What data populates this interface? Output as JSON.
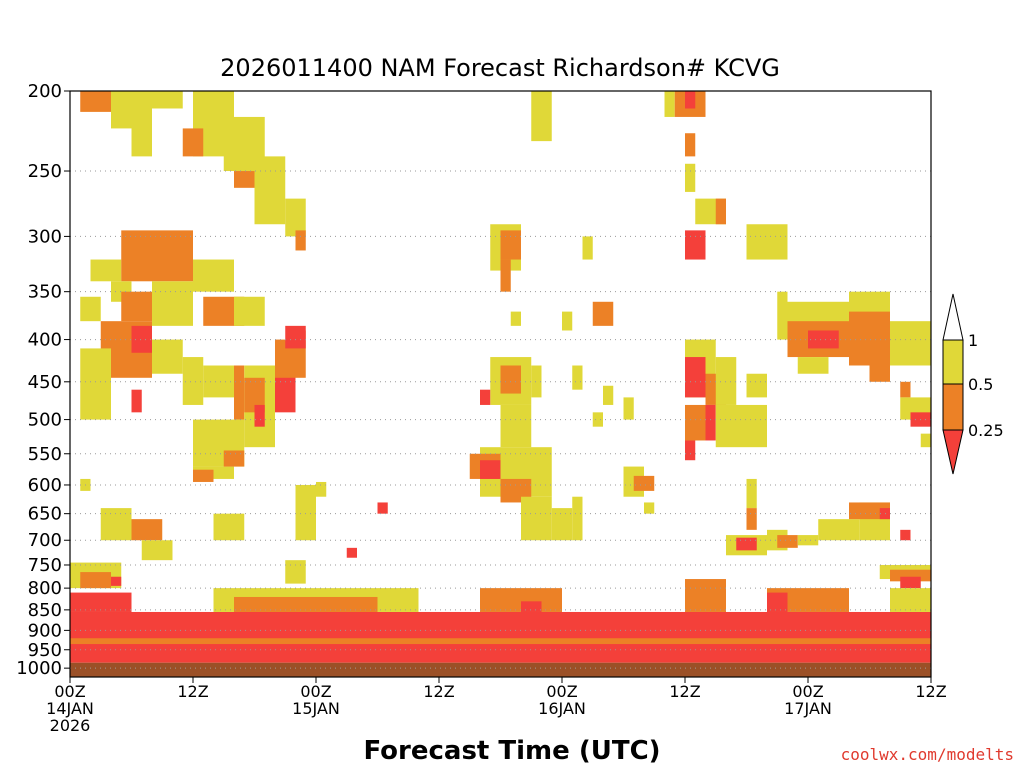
{
  "chart_data": {
    "type": "heatmap",
    "title": "2026011400 NAM Forecast Richardson# KCVG",
    "xlabel": "Forecast Time (UTC)",
    "ylabel": "",
    "credit": "coolwx.com/modelts",
    "y_axis": {
      "unit": "hPa",
      "range": [
        1025,
        200
      ],
      "ticks": [
        200,
        250,
        300,
        350,
        400,
        450,
        500,
        550,
        600,
        650,
        700,
        750,
        800,
        850,
        900,
        950,
        1000
      ]
    },
    "x_axis": {
      "range_hours": [
        0,
        84
      ],
      "ticks": [
        {
          "hour": 0,
          "line1": "00Z",
          "line2": "14JAN",
          "line3": "2026"
        },
        {
          "hour": 12,
          "line1": "12Z",
          "line2": "",
          "line3": ""
        },
        {
          "hour": 24,
          "line1": "00Z",
          "line2": "15JAN",
          "line3": ""
        },
        {
          "hour": 36,
          "line1": "12Z",
          "line2": "",
          "line3": ""
        },
        {
          "hour": 48,
          "line1": "00Z",
          "line2": "16JAN",
          "line3": ""
        },
        {
          "hour": 60,
          "line1": "12Z",
          "line2": "",
          "line3": ""
        },
        {
          "hour": 72,
          "line1": "00Z",
          "line2": "17JAN",
          "line3": ""
        },
        {
          "hour": 84,
          "line1": "12Z",
          "line2": "",
          "line3": ""
        }
      ]
    },
    "grid": "dotted horizontal lines at pressure ticks",
    "legend": {
      "placement": "right",
      "labels": [
        "1",
        "0.5",
        "0.25"
      ],
      "bins": [
        {
          "range": "> 1",
          "color": "#ffffff"
        },
        {
          "range": "0.5 - 1",
          "color": "#e0d838"
        },
        {
          "range": "0.25 - 0.5",
          "color": "#ec8126"
        },
        {
          "range": "< 0.25",
          "color": "#f4403a"
        }
      ]
    },
    "colors": {
      "low": "#f4403a",
      "mid": "#ec8126",
      "high": "#e0d838",
      "ground": "#9b5027"
    },
    "ground_below_hpa": 985,
    "cells": [
      {
        "t0": 1,
        "t1": 4,
        "p0": 200,
        "p1": 212,
        "c": "mid"
      },
      {
        "t0": 4,
        "t1": 6,
        "p0": 200,
        "p1": 222,
        "c": "high"
      },
      {
        "t0": 6,
        "t1": 11,
        "p0": 200,
        "p1": 210,
        "c": "high"
      },
      {
        "t0": 6,
        "t1": 8,
        "p0": 210,
        "p1": 240,
        "c": "high"
      },
      {
        "t0": 12,
        "t1": 16,
        "p0": 200,
        "p1": 240,
        "c": "high"
      },
      {
        "t0": 11,
        "t1": 13,
        "p0": 222,
        "p1": 240,
        "c": "mid"
      },
      {
        "t0": 15,
        "t1": 19,
        "p0": 215,
        "p1": 250,
        "c": "high"
      },
      {
        "t0": 16,
        "t1": 18,
        "p0": 250,
        "p1": 262,
        "c": "mid"
      },
      {
        "t0": 18,
        "t1": 21,
        "p0": 240,
        "p1": 290,
        "c": "high"
      },
      {
        "t0": 21,
        "t1": 23,
        "p0": 270,
        "p1": 300,
        "c": "high"
      },
      {
        "t0": 22,
        "t1": 23,
        "p0": 295,
        "p1": 312,
        "c": "mid"
      },
      {
        "t0": 2,
        "t1": 5,
        "p0": 320,
        "p1": 340,
        "c": "high"
      },
      {
        "t0": 5,
        "t1": 12,
        "p0": 295,
        "p1": 340,
        "c": "mid"
      },
      {
        "t0": 4,
        "t1": 6,
        "p0": 340,
        "p1": 360,
        "c": "high"
      },
      {
        "t0": 5,
        "t1": 8,
        "p0": 350,
        "p1": 380,
        "c": "mid"
      },
      {
        "t0": 8,
        "t1": 12,
        "p0": 340,
        "p1": 385,
        "c": "high"
      },
      {
        "t0": 12,
        "t1": 16,
        "p0": 320,
        "p1": 350,
        "c": "high"
      },
      {
        "t0": 13,
        "t1": 17,
        "p0": 355,
        "p1": 385,
        "c": "mid"
      },
      {
        "t0": 16,
        "t1": 19,
        "p0": 355,
        "p1": 385,
        "c": "high"
      },
      {
        "t0": 1,
        "t1": 3,
        "p0": 355,
        "p1": 380,
        "c": "high"
      },
      {
        "t0": 3,
        "t1": 8,
        "p0": 380,
        "p1": 445,
        "c": "mid"
      },
      {
        "t0": 6,
        "t1": 8,
        "p0": 385,
        "p1": 415,
        "c": "low"
      },
      {
        "t0": 1,
        "t1": 4,
        "p0": 410,
        "p1": 500,
        "c": "high"
      },
      {
        "t0": 8,
        "t1": 11,
        "p0": 400,
        "p1": 440,
        "c": "high"
      },
      {
        "t0": 11,
        "t1": 13,
        "p0": 420,
        "p1": 480,
        "c": "high"
      },
      {
        "t0": 13,
        "t1": 16,
        "p0": 430,
        "p1": 470,
        "c": "high"
      },
      {
        "t0": 16,
        "t1": 17,
        "p0": 430,
        "p1": 500,
        "c": "mid"
      },
      {
        "t0": 17,
        "t1": 20,
        "p0": 430,
        "p1": 540,
        "c": "high"
      },
      {
        "t0": 17,
        "t1": 19,
        "p0": 445,
        "p1": 490,
        "c": "mid"
      },
      {
        "t0": 20,
        "t1": 22,
        "p0": 400,
        "p1": 480,
        "c": "mid"
      },
      {
        "t0": 20,
        "t1": 22,
        "p0": 445,
        "p1": 490,
        "c": "low"
      },
      {
        "t0": 22,
        "t1": 23,
        "p0": 390,
        "p1": 445,
        "c": "mid"
      },
      {
        "t0": 21,
        "t1": 23,
        "p0": 385,
        "p1": 410,
        "c": "low"
      },
      {
        "t0": 18,
        "t1": 19,
        "p0": 480,
        "p1": 510,
        "c": "low"
      },
      {
        "t0": 12,
        "t1": 17,
        "p0": 500,
        "p1": 570,
        "c": "high"
      },
      {
        "t0": 12,
        "t1": 16,
        "p0": 570,
        "p1": 590,
        "c": "high"
      },
      {
        "t0": 12,
        "t1": 14,
        "p0": 575,
        "p1": 595,
        "c": "mid"
      },
      {
        "t0": 15,
        "t1": 17,
        "p0": 545,
        "p1": 570,
        "c": "mid"
      },
      {
        "t0": 6,
        "t1": 7,
        "p0": 460,
        "p1": 490,
        "c": "low"
      },
      {
        "t0": 1,
        "t1": 2,
        "p0": 590,
        "p1": 610,
        "c": "high"
      },
      {
        "t0": 3,
        "t1": 6,
        "p0": 640,
        "p1": 700,
        "c": "high"
      },
      {
        "t0": 6,
        "t1": 9,
        "p0": 660,
        "p1": 700,
        "c": "mid"
      },
      {
        "t0": 7,
        "t1": 10,
        "p0": 700,
        "p1": 740,
        "c": "high"
      },
      {
        "t0": 0,
        "t1": 5,
        "p0": 745,
        "p1": 800,
        "c": "high"
      },
      {
        "t0": 1,
        "t1": 4,
        "p0": 765,
        "p1": 800,
        "c": "mid"
      },
      {
        "t0": 4,
        "t1": 5,
        "p0": 775,
        "p1": 795,
        "c": "low"
      },
      {
        "t0": 14,
        "t1": 17,
        "p0": 650,
        "p1": 700,
        "c": "high"
      },
      {
        "t0": 22,
        "t1": 24,
        "p0": 600,
        "p1": 700,
        "c": "high"
      },
      {
        "t0": 24,
        "t1": 25,
        "p0": 595,
        "p1": 620,
        "c": "high"
      },
      {
        "t0": 27,
        "t1": 28,
        "p0": 715,
        "p1": 735,
        "c": "low"
      },
      {
        "t0": 30,
        "t1": 31,
        "p0": 630,
        "p1": 650,
        "c": "low"
      },
      {
        "t0": 21,
        "t1": 23,
        "p0": 740,
        "p1": 790,
        "c": "high"
      },
      {
        "t0": 45,
        "t1": 47,
        "p0": 200,
        "p1": 230,
        "c": "high"
      },
      {
        "t0": 41,
        "t1": 44,
        "p0": 290,
        "p1": 330,
        "c": "high"
      },
      {
        "t0": 42,
        "t1": 44,
        "p0": 295,
        "p1": 320,
        "c": "mid"
      },
      {
        "t0": 42,
        "t1": 43,
        "p0": 320,
        "p1": 350,
        "c": "mid"
      },
      {
        "t0": 50,
        "t1": 51,
        "p0": 300,
        "p1": 320,
        "c": "high"
      },
      {
        "t0": 43,
        "t1": 44,
        "p0": 370,
        "p1": 385,
        "c": "high"
      },
      {
        "t0": 51,
        "t1": 53,
        "p0": 360,
        "p1": 385,
        "c": "mid"
      },
      {
        "t0": 48,
        "t1": 49,
        "p0": 370,
        "p1": 390,
        "c": "high"
      },
      {
        "t0": 41,
        "t1": 45,
        "p0": 420,
        "p1": 480,
        "c": "high"
      },
      {
        "t0": 42,
        "t1": 44,
        "p0": 430,
        "p1": 465,
        "c": "mid"
      },
      {
        "t0": 40,
        "t1": 41,
        "p0": 460,
        "p1": 480,
        "c": "low"
      },
      {
        "t0": 42,
        "t1": 45,
        "p0": 480,
        "p1": 540,
        "c": "high"
      },
      {
        "t0": 40,
        "t1": 47,
        "p0": 540,
        "p1": 620,
        "c": "high"
      },
      {
        "t0": 39,
        "t1": 42,
        "p0": 550,
        "p1": 590,
        "c": "mid"
      },
      {
        "t0": 40,
        "t1": 42,
        "p0": 560,
        "p1": 590,
        "c": "low"
      },
      {
        "t0": 42,
        "t1": 45,
        "p0": 590,
        "p1": 630,
        "c": "mid"
      },
      {
        "t0": 44,
        "t1": 47,
        "p0": 620,
        "p1": 700,
        "c": "high"
      },
      {
        "t0": 47,
        "t1": 49,
        "p0": 640,
        "p1": 700,
        "c": "high"
      },
      {
        "t0": 49,
        "t1": 50,
        "p0": 620,
        "p1": 700,
        "c": "high"
      },
      {
        "t0": 45,
        "t1": 46,
        "p0": 430,
        "p1": 470,
        "c": "high"
      },
      {
        "t0": 49,
        "t1": 50,
        "p0": 430,
        "p1": 460,
        "c": "high"
      },
      {
        "t0": 52,
        "t1": 53,
        "p0": 455,
        "p1": 480,
        "c": "high"
      },
      {
        "t0": 51,
        "t1": 52,
        "p0": 490,
        "p1": 510,
        "c": "high"
      },
      {
        "t0": 54,
        "t1": 55,
        "p0": 470,
        "p1": 500,
        "c": "high"
      },
      {
        "t0": 54,
        "t1": 56,
        "p0": 570,
        "p1": 620,
        "c": "high"
      },
      {
        "t0": 55,
        "t1": 57,
        "p0": 585,
        "p1": 610,
        "c": "mid"
      },
      {
        "t0": 56,
        "t1": 57,
        "p0": 630,
        "p1": 650,
        "c": "high"
      },
      {
        "t0": 58,
        "t1": 59,
        "p0": 200,
        "p1": 215,
        "c": "high"
      },
      {
        "t0": 59,
        "t1": 62,
        "p0": 200,
        "p1": 215,
        "c": "mid"
      },
      {
        "t0": 60,
        "t1": 61,
        "p0": 200,
        "p1": 210,
        "c": "low"
      },
      {
        "t0": 60,
        "t1": 61,
        "p0": 225,
        "p1": 240,
        "c": "mid"
      },
      {
        "t0": 60,
        "t1": 61,
        "p0": 245,
        "p1": 265,
        "c": "high"
      },
      {
        "t0": 61,
        "t1": 64,
        "p0": 270,
        "p1": 290,
        "c": "high"
      },
      {
        "t0": 63,
        "t1": 64,
        "p0": 270,
        "p1": 290,
        "c": "mid"
      },
      {
        "t0": 60,
        "t1": 62,
        "p0": 295,
        "p1": 320,
        "c": "low"
      },
      {
        "t0": 66,
        "t1": 70,
        "p0": 290,
        "p1": 320,
        "c": "high"
      },
      {
        "t0": 60,
        "t1": 63,
        "p0": 400,
        "p1": 470,
        "c": "high"
      },
      {
        "t0": 60,
        "t1": 62,
        "p0": 420,
        "p1": 470,
        "c": "low"
      },
      {
        "t0": 62,
        "t1": 64,
        "p0": 440,
        "p1": 480,
        "c": "mid"
      },
      {
        "t0": 63,
        "t1": 65,
        "p0": 420,
        "p1": 480,
        "c": "high"
      },
      {
        "t0": 60,
        "t1": 62,
        "p0": 480,
        "p1": 530,
        "c": "mid"
      },
      {
        "t0": 62,
        "t1": 63,
        "p0": 480,
        "p1": 530,
        "c": "low"
      },
      {
        "t0": 63,
        "t1": 68,
        "p0": 480,
        "p1": 540,
        "c": "high"
      },
      {
        "t0": 60,
        "t1": 61,
        "p0": 530,
        "p1": 560,
        "c": "low"
      },
      {
        "t0": 66,
        "t1": 68,
        "p0": 440,
        "p1": 470,
        "c": "high"
      },
      {
        "t0": 66,
        "t1": 67,
        "p0": 590,
        "p1": 640,
        "c": "high"
      },
      {
        "t0": 66,
        "t1": 67,
        "p0": 640,
        "p1": 680,
        "c": "mid"
      },
      {
        "t0": 64,
        "t1": 68,
        "p0": 690,
        "p1": 730,
        "c": "high"
      },
      {
        "t0": 65,
        "t1": 67,
        "p0": 695,
        "p1": 720,
        "c": "low"
      },
      {
        "t0": 68,
        "t1": 70,
        "p0": 680,
        "p1": 720,
        "c": "high"
      },
      {
        "t0": 69,
        "t1": 71,
        "p0": 690,
        "p1": 715,
        "c": "mid"
      },
      {
        "t0": 71,
        "t1": 73,
        "p0": 690,
        "p1": 710,
        "c": "high"
      },
      {
        "t0": 73,
        "t1": 77,
        "p0": 660,
        "p1": 700,
        "c": "high"
      },
      {
        "t0": 77,
        "t1": 80,
        "p0": 630,
        "p1": 700,
        "c": "high"
      },
      {
        "t0": 76,
        "t1": 80,
        "p0": 630,
        "p1": 660,
        "c": "mid"
      },
      {
        "t0": 79,
        "t1": 80,
        "p0": 640,
        "p1": 660,
        "c": "low"
      },
      {
        "t0": 81,
        "t1": 82,
        "p0": 680,
        "p1": 700,
        "c": "low"
      },
      {
        "t0": 79,
        "t1": 84,
        "p0": 750,
        "p1": 780,
        "c": "high"
      },
      {
        "t0": 80,
        "t1": 84,
        "p0": 760,
        "p1": 785,
        "c": "mid"
      },
      {
        "t0": 81,
        "t1": 83,
        "p0": 775,
        "p1": 800,
        "c": "low"
      },
      {
        "t0": 69,
        "t1": 70,
        "p0": 350,
        "p1": 400,
        "c": "high"
      },
      {
        "t0": 70,
        "t1": 76,
        "p0": 360,
        "p1": 400,
        "c": "high"
      },
      {
        "t0": 76,
        "t1": 80,
        "p0": 350,
        "p1": 400,
        "c": "high"
      },
      {
        "t0": 70,
        "t1": 76,
        "p0": 380,
        "p1": 420,
        "c": "mid"
      },
      {
        "t0": 72,
        "t1": 75,
        "p0": 390,
        "p1": 410,
        "c": "low"
      },
      {
        "t0": 76,
        "t1": 80,
        "p0": 370,
        "p1": 430,
        "c": "mid"
      },
      {
        "t0": 78,
        "t1": 80,
        "p0": 400,
        "p1": 450,
        "c": "mid"
      },
      {
        "t0": 80,
        "t1": 84,
        "p0": 380,
        "p1": 430,
        "c": "high"
      },
      {
        "t0": 71,
        "t1": 74,
        "p0": 420,
        "p1": 440,
        "c": "high"
      },
      {
        "t0": 81,
        "t1": 82,
        "p0": 450,
        "p1": 470,
        "c": "mid"
      },
      {
        "t0": 81,
        "t1": 84,
        "p0": 470,
        "p1": 500,
        "c": "high"
      },
      {
        "t0": 82,
        "t1": 84,
        "p0": 490,
        "p1": 510,
        "c": "low"
      },
      {
        "t0": 83,
        "t1": 84,
        "p0": 520,
        "p1": 540,
        "c": "high"
      },
      {
        "t0": 0,
        "t1": 6,
        "p0": 810,
        "p1": 855,
        "c": "low"
      },
      {
        "t0": 0,
        "t1": 84,
        "p0": 855,
        "p1": 985,
        "c": "low"
      },
      {
        "t0": 14,
        "t1": 34,
        "p0": 800,
        "p1": 855,
        "c": "high"
      },
      {
        "t0": 16,
        "t1": 30,
        "p0": 820,
        "p1": 855,
        "c": "mid"
      },
      {
        "t0": 40,
        "t1": 48,
        "p0": 800,
        "p1": 855,
        "c": "mid"
      },
      {
        "t0": 44,
        "t1": 46,
        "p0": 830,
        "p1": 855,
        "c": "low"
      },
      {
        "t0": 60,
        "t1": 64,
        "p0": 780,
        "p1": 855,
        "c": "mid"
      },
      {
        "t0": 68,
        "t1": 76,
        "p0": 800,
        "p1": 855,
        "c": "mid"
      },
      {
        "t0": 68,
        "t1": 70,
        "p0": 810,
        "p1": 855,
        "c": "low"
      },
      {
        "t0": 80,
        "t1": 84,
        "p0": 800,
        "p1": 855,
        "c": "high"
      },
      {
        "t0": 0,
        "t1": 84,
        "p0": 920,
        "p1": 935,
        "c": "mid"
      }
    ]
  }
}
